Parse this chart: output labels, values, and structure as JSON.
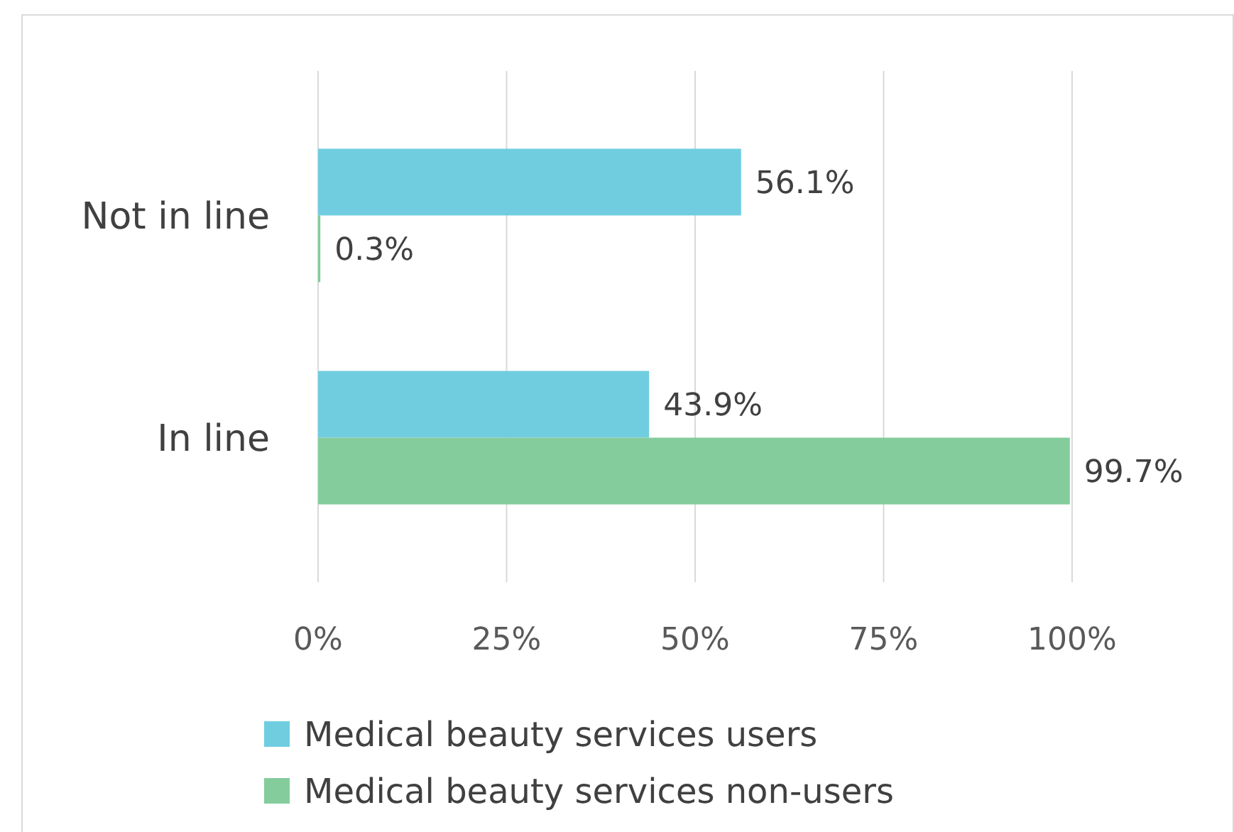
{
  "chart_data": {
    "type": "bar",
    "orientation": "horizontal",
    "categories": [
      "Not in line",
      "In line"
    ],
    "series": [
      {
        "name": "Medical beauty services users",
        "color": "#70cde0",
        "values": [
          56.1,
          43.9
        ],
        "value_labels": [
          "56.1%",
          "43.9%"
        ]
      },
      {
        "name": "Medical beauty services non-users",
        "color": "#84cc9c",
        "values": [
          0.3,
          99.7
        ],
        "value_labels": [
          "0.3%",
          "99.7%"
        ]
      }
    ],
    "xlim": [
      0,
      100
    ],
    "xticks": [
      {
        "value": 0,
        "label": "0%"
      },
      {
        "value": 25,
        "label": "25%"
      },
      {
        "value": 50,
        "label": "50%"
      },
      {
        "value": 75,
        "label": "75%"
      },
      {
        "value": 100,
        "label": "100%"
      }
    ],
    "grid": "x",
    "legend": "bottom"
  }
}
